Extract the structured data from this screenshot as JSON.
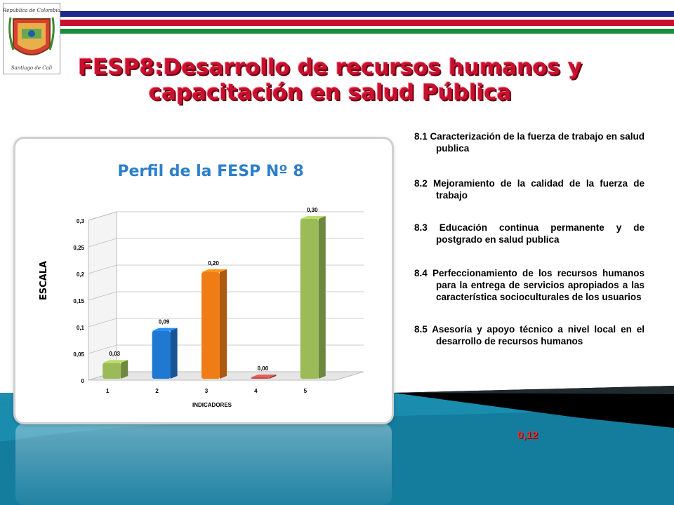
{
  "slide_title": {
    "line1": "FESP8:Desarrollo de recursos humanos y",
    "line2": "capacitación en salud Pública"
  },
  "logo": {
    "top_text": "República de Colombia",
    "bottom_text": "Santiago de Cali"
  },
  "stripes_colors": [
    "#1f2a8f",
    "#c8102e",
    "#1a8f3a"
  ],
  "indicators": [
    {
      "num": "8.1",
      "text": "Caracterización de la fuerza de trabajo en salud publica"
    },
    {
      "num": "8.2",
      "text": "Mejoramiento de la calidad de la fuerza de trabajo"
    },
    {
      "num": "8.3",
      "text": "Educación continua  permanente y de postgrado en salud publica"
    },
    {
      "num": "8.4",
      "text": "Perfeccionamiento de los recursos humanos para la entrega de servicios apropiados a las característica socioculturales de los usuarios"
    },
    {
      "num": "8.5",
      "text": "Asesoría y apoyo técnico a nivel local en el desarrollo de recursos humanos"
    }
  ],
  "average_value": "0,12",
  "chart_data": {
    "type": "bar",
    "title": "Perfil de la FESP Nº 8",
    "xlabel": "INDICADORES",
    "ylabel": "ESCALA",
    "categories": [
      "1",
      "2",
      "3",
      "4",
      "5"
    ],
    "values": [
      0.03,
      0.09,
      0.2,
      0.0,
      0.3
    ],
    "data_labels": [
      "0,03",
      "0,09",
      "0,20",
      "0,00",
      "0,30"
    ],
    "bar_colors": [
      "#9bbb59",
      "#1f78d1",
      "#f07c16",
      "#c0504d",
      "#9bbb59"
    ],
    "ylim": [
      0,
      0.3
    ],
    "yticks": [
      0,
      0.05,
      0.1,
      0.15,
      0.2,
      0.25,
      0.3
    ],
    "ytick_labels": [
      "0",
      "0,05",
      "0,1",
      "0,15",
      "0,2",
      "0,25",
      "0,3"
    ],
    "grid": true
  }
}
